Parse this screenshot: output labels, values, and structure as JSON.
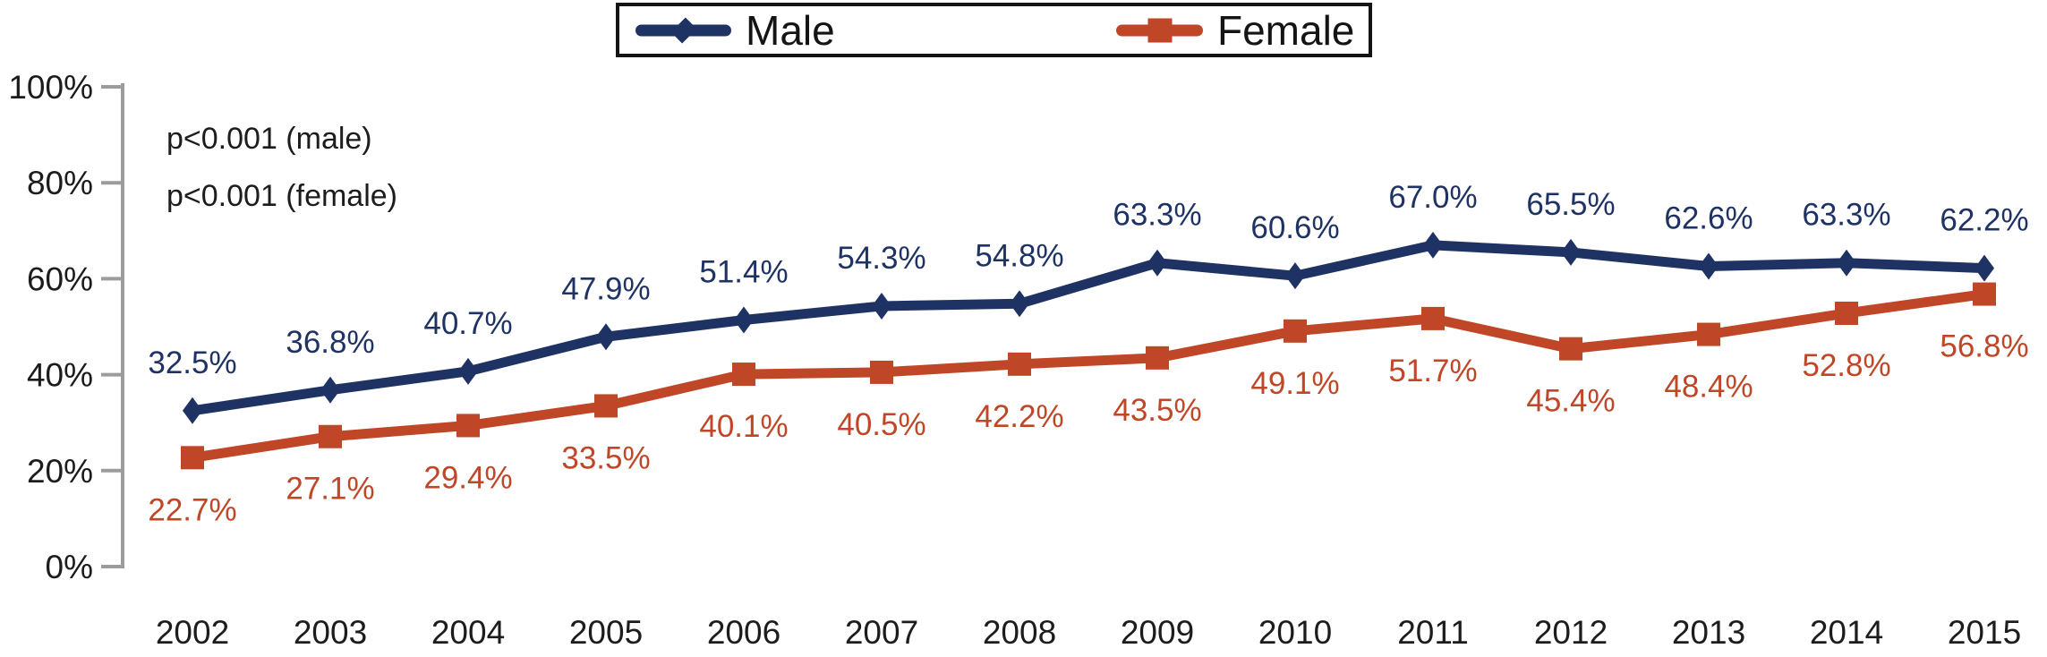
{
  "chart_data": {
    "type": "line",
    "title": "",
    "categories": [
      "2002",
      "2003",
      "2004",
      "2005",
      "2006",
      "2007",
      "2008",
      "2009",
      "2010",
      "2011",
      "2012",
      "2013",
      "2014",
      "2015"
    ],
    "series": [
      {
        "name": "Male",
        "marker": "diamond",
        "color": "#1e3264",
        "label_position": "above",
        "values": [
          32.5,
          36.8,
          40.7,
          47.9,
          51.4,
          54.3,
          54.8,
          63.3,
          60.6,
          67.0,
          65.5,
          62.6,
          63.3,
          62.2
        ]
      },
      {
        "name": "Female",
        "marker": "square",
        "color": "#bf4626",
        "label_position": "below",
        "values": [
          22.7,
          27.1,
          29.4,
          33.5,
          40.1,
          40.5,
          42.2,
          43.5,
          49.1,
          51.7,
          45.4,
          48.4,
          52.8,
          56.8
        ]
      }
    ],
    "xlabel": "",
    "ylabel": "",
    "ylim": [
      0,
      100
    ],
    "yticks": [
      0,
      20,
      40,
      60,
      80,
      100
    ],
    "ytick_suffix": "%",
    "data_label_suffix": "%",
    "annotations": [
      "p<0.001 (male)",
      "p<0.001 (female)"
    ],
    "legend_position": "top-center",
    "grid": false,
    "axis_color": "#9c9c9c",
    "text_color": "#1c1c1c",
    "legend_border_color": "#141414"
  }
}
